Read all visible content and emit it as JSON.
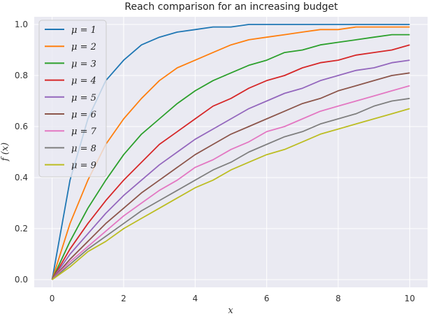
{
  "chart_data": {
    "type": "line",
    "title": "Reach comparison for an increasing budget",
    "xlabel": "x",
    "ylabel": "f (x)",
    "xlim": [
      -0.5,
      10.5
    ],
    "ylim": [
      -0.03,
      1.03
    ],
    "xticks": [
      0,
      2,
      4,
      6,
      8,
      10
    ],
    "yticks": [
      0.0,
      0.2,
      0.4,
      0.6,
      0.8,
      1.0
    ],
    "xtick_labels": [
      "0",
      "2",
      "4",
      "6",
      "8",
      "10"
    ],
    "ytick_labels": [
      "0.0",
      "0.2",
      "0.4",
      "0.6",
      "0.8",
      "1.0"
    ],
    "grid": true,
    "legend_position": "top-left",
    "x": [
      0,
      0.5,
      1,
      1.5,
      2,
      2.5,
      3,
      3.5,
      4,
      4.5,
      5,
      5.5,
      6,
      6.5,
      7,
      7.5,
      8,
      8.5,
      9,
      9.5,
      10
    ],
    "series": [
      {
        "name": "μ = 1",
        "color": "#1f77b4",
        "values": [
          0,
          0.39,
          0.63,
          0.78,
          0.86,
          0.92,
          0.95,
          0.97,
          0.98,
          0.99,
          0.99,
          1.0,
          1.0,
          1.0,
          1.0,
          1.0,
          1.0,
          1.0,
          1.0,
          1.0,
          1.0
        ]
      },
      {
        "name": "μ = 2",
        "color": "#ff7f0e",
        "values": [
          0,
          0.22,
          0.39,
          0.53,
          0.63,
          0.71,
          0.78,
          0.83,
          0.86,
          0.89,
          0.92,
          0.94,
          0.95,
          0.96,
          0.97,
          0.98,
          0.98,
          0.99,
          0.99,
          0.99,
          0.99
        ]
      },
      {
        "name": "μ = 3",
        "color": "#2ca02c",
        "values": [
          0,
          0.15,
          0.28,
          0.39,
          0.49,
          0.57,
          0.63,
          0.69,
          0.74,
          0.78,
          0.81,
          0.84,
          0.86,
          0.89,
          0.9,
          0.92,
          0.93,
          0.94,
          0.95,
          0.96,
          0.96
        ]
      },
      {
        "name": "μ = 4",
        "color": "#d62728",
        "values": [
          0,
          0.12,
          0.22,
          0.31,
          0.39,
          0.46,
          0.53,
          0.58,
          0.63,
          0.68,
          0.71,
          0.75,
          0.78,
          0.8,
          0.83,
          0.85,
          0.86,
          0.88,
          0.89,
          0.9,
          0.92
        ]
      },
      {
        "name": "μ = 5",
        "color": "#9467bd",
        "values": [
          0,
          0.1,
          0.18,
          0.26,
          0.33,
          0.39,
          0.45,
          0.5,
          0.55,
          0.59,
          0.63,
          0.67,
          0.7,
          0.73,
          0.75,
          0.78,
          0.8,
          0.82,
          0.83,
          0.85,
          0.86
        ]
      },
      {
        "name": "μ = 6",
        "color": "#8c564b",
        "values": [
          0,
          0.08,
          0.15,
          0.22,
          0.28,
          0.34,
          0.39,
          0.44,
          0.49,
          0.53,
          0.57,
          0.6,
          0.63,
          0.66,
          0.69,
          0.71,
          0.74,
          0.76,
          0.78,
          0.8,
          0.81
        ]
      },
      {
        "name": "μ = 7",
        "color": "#e377c2",
        "values": [
          0,
          0.07,
          0.13,
          0.19,
          0.25,
          0.3,
          0.35,
          0.39,
          0.44,
          0.47,
          0.51,
          0.54,
          0.58,
          0.6,
          0.63,
          0.66,
          0.68,
          0.7,
          0.72,
          0.74,
          0.76
        ]
      },
      {
        "name": "μ = 8",
        "color": "#7f7f7f",
        "values": [
          0,
          0.06,
          0.12,
          0.17,
          0.22,
          0.27,
          0.31,
          0.35,
          0.39,
          0.43,
          0.46,
          0.5,
          0.53,
          0.56,
          0.58,
          0.61,
          0.63,
          0.65,
          0.68,
          0.7,
          0.71
        ]
      },
      {
        "name": "μ = 9",
        "color": "#bcbd22",
        "values": [
          0,
          0.05,
          0.11,
          0.15,
          0.2,
          0.24,
          0.28,
          0.32,
          0.36,
          0.39,
          0.43,
          0.46,
          0.49,
          0.51,
          0.54,
          0.57,
          0.59,
          0.61,
          0.63,
          0.65,
          0.67
        ]
      }
    ]
  }
}
